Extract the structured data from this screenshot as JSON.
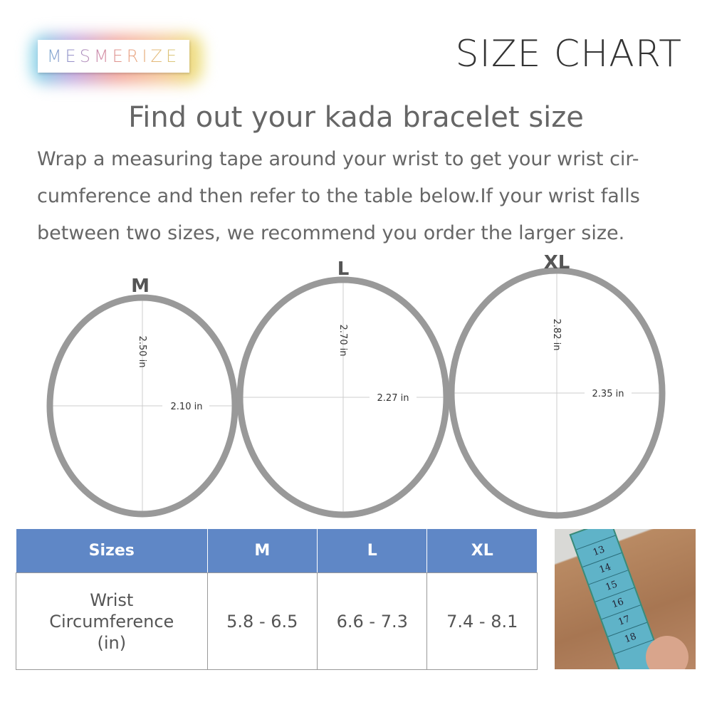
{
  "brand": {
    "logo_text": "MESMERIZE"
  },
  "header": {
    "title": "SIZE CHART"
  },
  "heading": "Find out your kada bracelet size",
  "description": [
    "Wrap a measuring tape around your wrist to get your wrist cir-",
    "cumference and then refer to the table below.If your wrist falls",
    "between two sizes, we recommend you order the larger size."
  ],
  "bracelets": [
    {
      "size": "M",
      "height": "2.50 in",
      "width": "2.10 in"
    },
    {
      "size": "L",
      "height": "2.70 in",
      "width": "2.27 in"
    },
    {
      "size": "XL",
      "height": "2.82 in",
      "width": "2.35 in"
    }
  ],
  "table": {
    "headers": [
      "Sizes",
      "M",
      "L",
      "XL"
    ],
    "row_label": [
      "Wrist",
      "Circumference",
      "(in)"
    ],
    "values": [
      "5.8 - 6.5",
      "6.6 - 7.3",
      "7.4 - 8.1"
    ]
  },
  "photo": {
    "tape_numbers": [
      "13",
      "14",
      "15",
      "16",
      "17",
      "18"
    ]
  },
  "colors": {
    "header_blue": "#5f87c6",
    "ring_gray": "#999999"
  }
}
